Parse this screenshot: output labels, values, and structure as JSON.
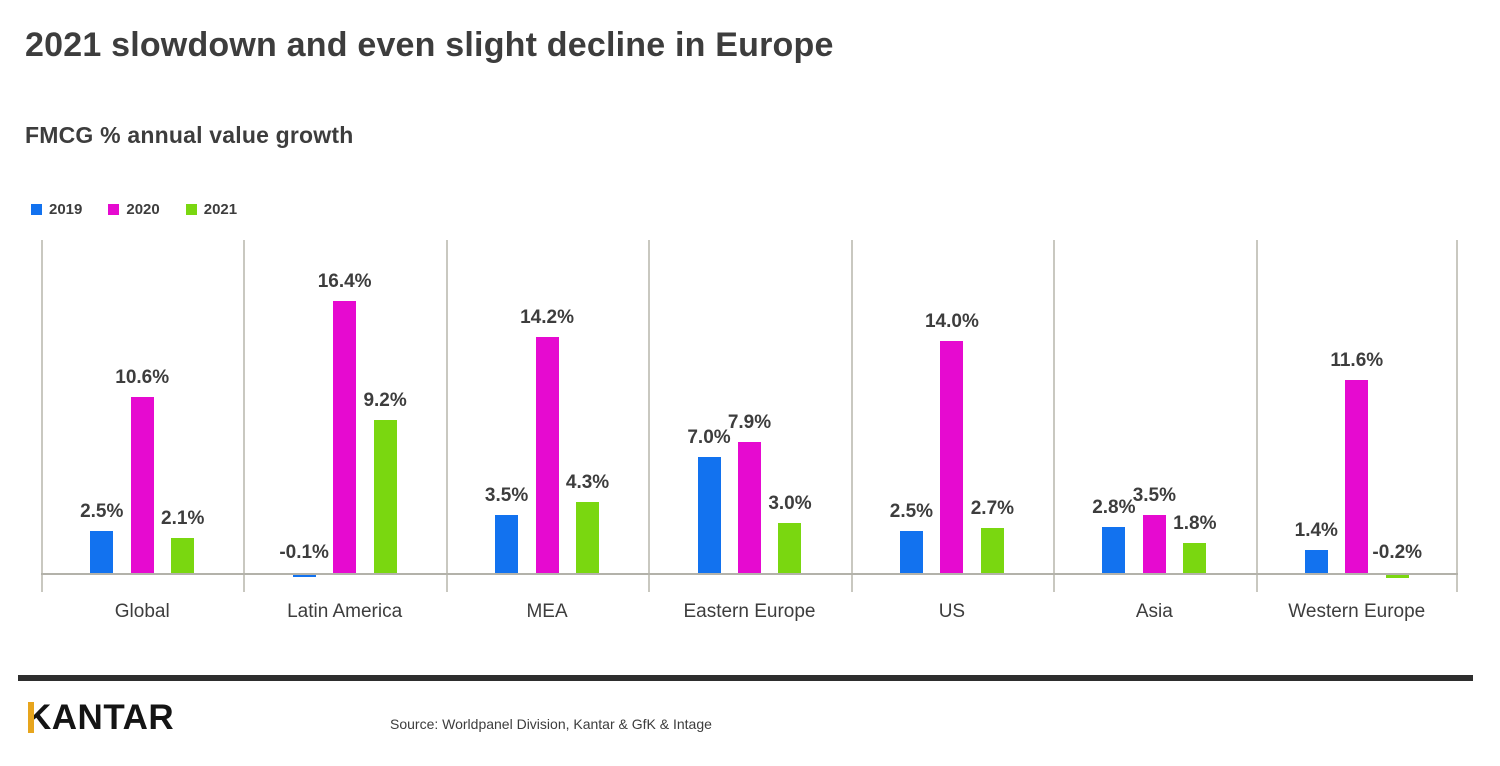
{
  "title": "2021 slowdown and even slight decline in Europe",
  "subtitle": "FMCG % annual value growth",
  "legend": [
    {
      "label": "2019",
      "color": "#1272ef"
    },
    {
      "label": "2020",
      "color": "#e60ad0"
    },
    {
      "label": "2021",
      "color": "#7ad710"
    }
  ],
  "footer": {
    "logo_text": "KANTAR",
    "logo_accent_color": "#e7a51d",
    "source": "Source: Worldpanel Division, Kantar & GfK & Intage"
  },
  "colors": {
    "text": "#3d3d3d",
    "separator": "#c9c8c0",
    "baseline": "#b3b2aa",
    "footer_rule": "#2e2e2e",
    "series_2019": "#1272ef",
    "series_2020": "#e60ad0",
    "series_2021": "#7ad710"
  },
  "chart_data": {
    "type": "bar",
    "title": "FMCG % annual value growth",
    "xlabel": "",
    "ylabel": "% annual value growth",
    "unit": "%",
    "axis_hidden": true,
    "grid": "vertical-panel-separators",
    "legend_position": "top-left",
    "value_labels": true,
    "ylim": [
      -0.5,
      18
    ],
    "categories": [
      "Global",
      "Latin America",
      "MEA",
      "Eastern Europe",
      "US",
      "Asia",
      "Western Europe"
    ],
    "series": [
      {
        "name": "2019",
        "color": "#1272ef",
        "values": [
          2.5,
          -0.1,
          3.5,
          7.0,
          2.5,
          2.8,
          1.4
        ],
        "labels": [
          "2.5%",
          "-0.1%",
          "3.5%",
          "7.0%",
          "2.5%",
          "2.8%",
          "1.4%"
        ]
      },
      {
        "name": "2020",
        "color": "#e60ad0",
        "values": [
          10.6,
          16.4,
          14.2,
          7.9,
          14.0,
          3.5,
          11.6
        ],
        "labels": [
          "10.6%",
          "16.4%",
          "14.2%",
          "7.9%",
          "14.0%",
          "3.5%",
          "11.6%"
        ]
      },
      {
        "name": "2021",
        "color": "#7ad710",
        "values": [
          2.1,
          9.2,
          4.3,
          3.0,
          2.7,
          1.8,
          -0.2
        ],
        "labels": [
          "2.1%",
          "9.2%",
          "4.3%",
          "3.0%",
          "2.7%",
          "1.8%",
          "-0.2%"
        ]
      }
    ]
  }
}
